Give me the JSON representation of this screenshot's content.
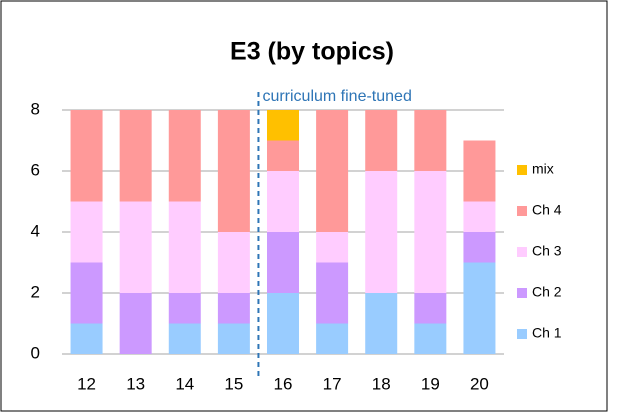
{
  "chart_data": {
    "type": "stacked_bar",
    "title": "E3 (by topics)",
    "categories": [
      "12",
      "13",
      "14",
      "15",
      "16",
      "17",
      "18",
      "19",
      "20"
    ],
    "series": [
      {
        "name": "Ch 1",
        "color": "#99ccff",
        "values": [
          1,
          0,
          1,
          1,
          2,
          1,
          2,
          1,
          3
        ]
      },
      {
        "name": "Ch 2",
        "color": "#cc99ff",
        "values": [
          2,
          2,
          1,
          1,
          2,
          2,
          0,
          1,
          1
        ]
      },
      {
        "name": "Ch 3",
        "color": "#ffccff",
        "values": [
          2,
          3,
          3,
          2,
          2,
          1,
          4,
          4,
          1
        ]
      },
      {
        "name": "Ch 4",
        "color": "#ff9999",
        "values": [
          3,
          3,
          3,
          4,
          1,
          4,
          2,
          2,
          2
        ]
      },
      {
        "name": "mix",
        "color": "#ffc000",
        "values": [
          0,
          0,
          0,
          0,
          1,
          0,
          0,
          0,
          0
        ]
      }
    ],
    "annotation": "curriculum fine-tuned",
    "ylim": [
      0,
      8
    ],
    "yticks": [
      0,
      2,
      4,
      6,
      8
    ],
    "grid": true,
    "legend": "right"
  }
}
